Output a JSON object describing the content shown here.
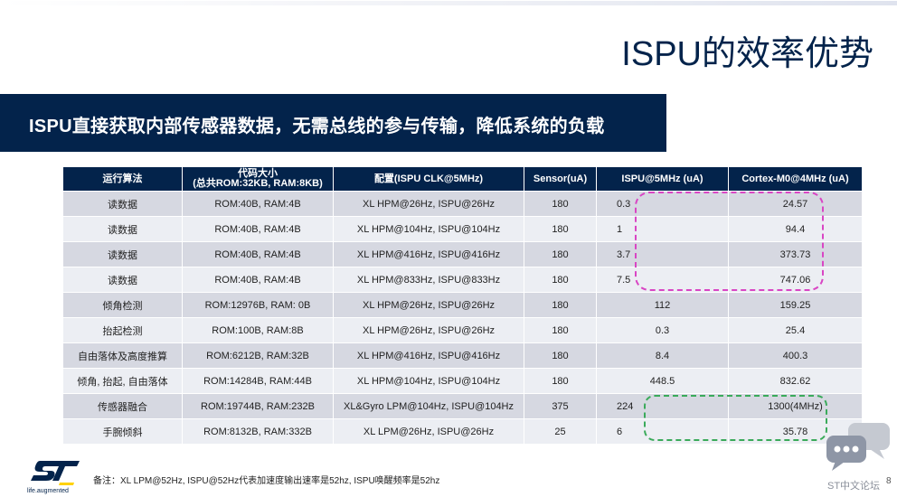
{
  "slide": {
    "title": "ISPU的效率优势",
    "banner": "ISPU直接获取内部传感器数据，无需总线的参与传输，降低系统的负载",
    "footnote": "备注：XL LPM@52Hz, ISPU@52Hz代表加速度输出速率是52hz, ISPU唤醒频率是52hz",
    "logo_tagline": "life.augmented",
    "watermark": "ST中文论坛",
    "page_number": "8",
    "colors": {
      "navy": "#03234b",
      "highlight_pink": "#d946c4",
      "highlight_green": "#3aaa5a"
    }
  },
  "table": {
    "headers": [
      "运行算法",
      "代码大小",
      "(总共ROM:32KB, RAM:8KB)",
      "配置(ISPU CLK@5MHz)",
      "Sensor(uA)",
      "ISPU@5MHz (uA)",
      "Cortex-M0@4MHz (uA)"
    ],
    "rows": [
      [
        "读数据",
        "ROM:40B, RAM:4B",
        "XL HPM@26Hz, ISPU@26Hz",
        "180",
        "0.3",
        "24.57"
      ],
      [
        "读数据",
        "ROM:40B, RAM:4B",
        "XL HPM@104Hz, ISPU@104Hz",
        "180",
        "1",
        "94.4"
      ],
      [
        "读数据",
        "ROM:40B, RAM:4B",
        "XL HPM@416Hz, ISPU@416Hz",
        "180",
        "3.7",
        "373.73"
      ],
      [
        "读数据",
        "ROM:40B, RAM:4B",
        "XL HPM@833Hz, ISPU@833Hz",
        "180",
        "7.5",
        "747.06"
      ],
      [
        "倾角检测",
        "ROM:12976B, RAM: 0B",
        "XL HPM@26Hz, ISPU@26Hz",
        "180",
        "112",
        "159.25"
      ],
      [
        "抬起检测",
        "ROM:100B, RAM:8B",
        "XL HPM@26Hz, ISPU@26Hz",
        "180",
        "0.3",
        "25.4"
      ],
      [
        "自由落体及高度推算",
        "ROM:6212B, RAM:32B",
        "XL HPM@416Hz, ISPU@416Hz",
        "180",
        "8.4",
        "400.3"
      ],
      [
        "倾角, 抬起, 自由落体",
        "ROM:14284B, RAM:44B",
        "XL HPM@104Hz, ISPU@104Hz",
        "180",
        "448.5",
        "832.62"
      ],
      [
        "传感器融合",
        "ROM:19744B, RAM:232B",
        "XL&Gyro LPM@104Hz, ISPU@104Hz",
        "375",
        "224",
        "1300(4MHz)"
      ],
      [
        "手腕倾斜",
        "ROM:8132B, RAM:332B",
        "XL LPM@26Hz, ISPU@26Hz",
        "25",
        "6",
        "35.78"
      ]
    ]
  }
}
